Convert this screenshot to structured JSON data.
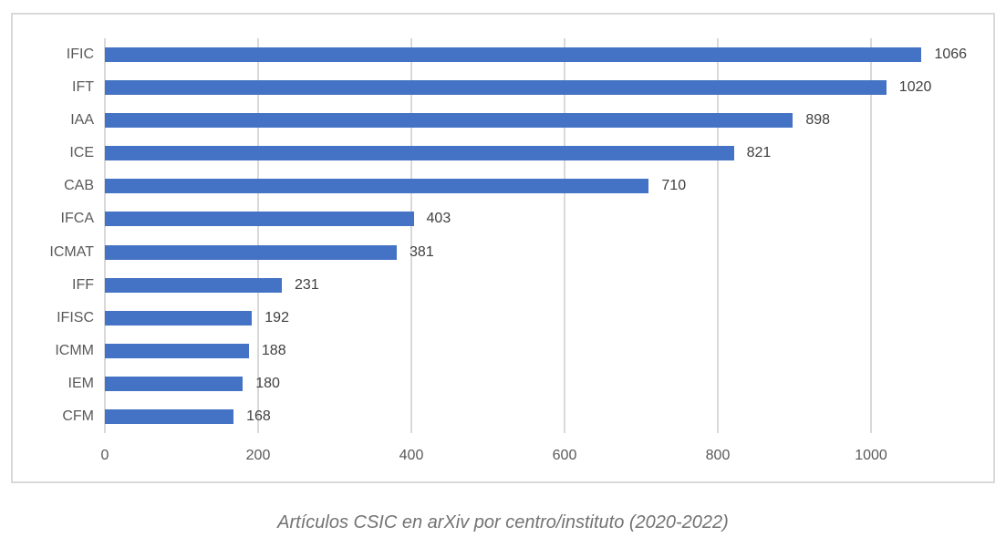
{
  "chart_data": {
    "type": "bar",
    "orientation": "horizontal",
    "title": "Artículos CSIC en arXiv por centro/instituto (2020-2022)",
    "xlabel": "",
    "ylabel": "",
    "categories": [
      "IFIC",
      "IFT",
      "IAA",
      "ICE",
      "CAB",
      "IFCA",
      "ICMAT",
      "IFF",
      "IFISC",
      "ICMM",
      "IEM",
      "CFM"
    ],
    "values": [
      1066,
      1020,
      898,
      821,
      710,
      403,
      381,
      231,
      192,
      188,
      180,
      168
    ],
    "data_labels": [
      "1066",
      "1020",
      "898",
      "821",
      "710",
      "403",
      "381",
      "231",
      "192",
      "188",
      "180",
      "168"
    ],
    "xticks": [
      0,
      200,
      400,
      600,
      800,
      1000
    ],
    "xtick_labels": [
      "0",
      "200",
      "400",
      "600",
      "800",
      "1000"
    ],
    "xlim": [
      0,
      1150
    ],
    "grid": true,
    "legend": false,
    "title_position": "bottom-caption"
  },
  "colors": {
    "bar": "#4472C4",
    "gridline": "#D9D9D9",
    "frame_border": "#D9D9D9",
    "axis_text": "#595959",
    "value_text": "#404040",
    "title_text": "#737373",
    "background": "#FFFFFF"
  }
}
